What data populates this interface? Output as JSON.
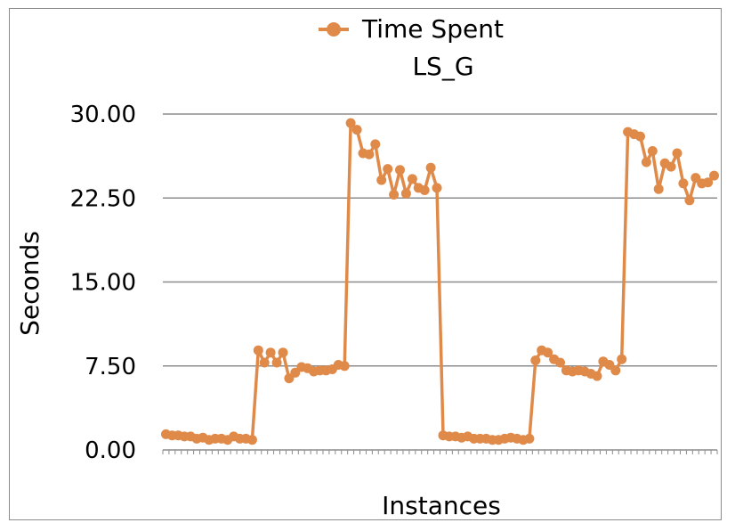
{
  "chart_data": {
    "type": "line",
    "title": "LS_G",
    "xlabel": "Instances",
    "ylabel": "Seconds",
    "ylim": [
      0,
      30
    ],
    "yticks": [
      "0.00",
      "7.50",
      "15.00",
      "22.50",
      "30.00"
    ],
    "grid": true,
    "legend": "top-center",
    "series": [
      {
        "name": "Time Spent",
        "color": "#E08A4A",
        "values": [
          1.4,
          1.3,
          1.3,
          1.2,
          1.2,
          1.0,
          1.1,
          0.9,
          1.0,
          1.0,
          0.9,
          1.2,
          1.0,
          1.0,
          0.9,
          8.9,
          7.8,
          8.7,
          7.8,
          8.7,
          6.4,
          6.9,
          7.4,
          7.3,
          7.0,
          7.1,
          7.1,
          7.2,
          7.6,
          7.5,
          29.2,
          28.6,
          26.5,
          26.4,
          27.3,
          24.1,
          25.1,
          22.8,
          25.0,
          22.9,
          24.2,
          23.4,
          23.2,
          25.2,
          23.4,
          1.3,
          1.2,
          1.2,
          1.1,
          1.2,
          1.0,
          1.0,
          1.0,
          0.9,
          0.9,
          1.0,
          1.1,
          1.0,
          0.9,
          1.0,
          8.0,
          8.9,
          8.7,
          8.1,
          7.8,
          7.1,
          7.0,
          7.1,
          7.0,
          6.8,
          6.6,
          7.9,
          7.6,
          7.1,
          8.1,
          28.4,
          28.2,
          28.0,
          25.7,
          26.7,
          23.3,
          25.6,
          25.3,
          26.5,
          23.8,
          22.3,
          24.3,
          23.8,
          23.9,
          24.5
        ]
      }
    ]
  }
}
